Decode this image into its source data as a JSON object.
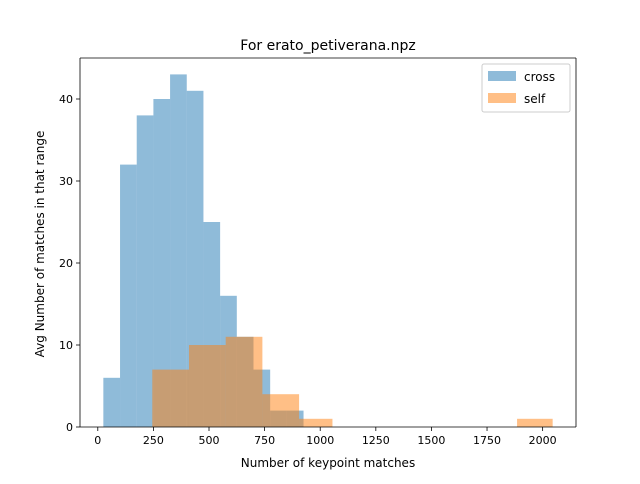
{
  "chart_data": {
    "type": "bar",
    "title": "For erato_petiverana.npz",
    "xlabel": "Number of keypoint matches",
    "ylabel": "Avg Number of matches in that range",
    "xlim": [
      -80,
      2150
    ],
    "ylim": [
      0,
      45
    ],
    "x_ticks": [
      0,
      250,
      500,
      750,
      1000,
      1250,
      1500,
      1750,
      2000
    ],
    "y_ticks": [
      0,
      10,
      20,
      30,
      40
    ],
    "grid": false,
    "legend_position": "top-right",
    "series": [
      {
        "name": "cross",
        "color": "#1f77b4",
        "alpha": 0.5,
        "bins": [
          {
            "x0": 25,
            "x1": 100,
            "count": 6
          },
          {
            "x0": 100,
            "x1": 175,
            "count": 32
          },
          {
            "x0": 175,
            "x1": 250,
            "count": 38
          },
          {
            "x0": 250,
            "x1": 325,
            "count": 40
          },
          {
            "x0": 325,
            "x1": 400,
            "count": 43
          },
          {
            "x0": 400,
            "x1": 475,
            "count": 41
          },
          {
            "x0": 475,
            "x1": 550,
            "count": 25
          },
          {
            "x0": 550,
            "x1": 625,
            "count": 16
          },
          {
            "x0": 625,
            "x1": 700,
            "count": 11
          },
          {
            "x0": 700,
            "x1": 775,
            "count": 7
          },
          {
            "x0": 775,
            "x1": 850,
            "count": 2
          },
          {
            "x0": 850,
            "x1": 925,
            "count": 2
          }
        ]
      },
      {
        "name": "self",
        "color": "#ff7f0e",
        "alpha": 0.5,
        "bins": [
          {
            "x0": 245,
            "x1": 410,
            "count": 7
          },
          {
            "x0": 410,
            "x1": 575,
            "count": 10
          },
          {
            "x0": 575,
            "x1": 740,
            "count": 11
          },
          {
            "x0": 740,
            "x1": 905,
            "count": 4
          },
          {
            "x0": 905,
            "x1": 1055,
            "count": 1
          },
          {
            "x0": 1055,
            "x1": 1885,
            "count": 0
          },
          {
            "x0": 1885,
            "x1": 2045,
            "count": 1
          }
        ]
      }
    ]
  }
}
